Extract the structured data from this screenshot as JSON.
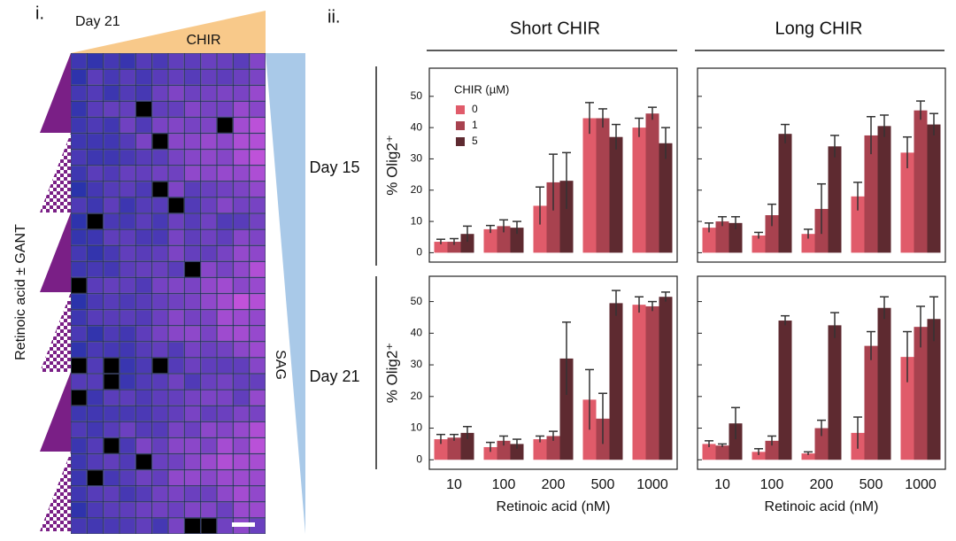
{
  "panel_i": {
    "label": "i.",
    "day": "Day 21",
    "top_gradient": "CHIR",
    "right_gradient": "SAG",
    "left_gradient": "Retinoic acid ± GANT"
  },
  "panel_ii": {
    "label": "ii.",
    "columns": [
      "Short CHIR",
      "Long CHIR"
    ],
    "rows": [
      "Day 15",
      "Day 21"
    ]
  },
  "chart_data": [
    {
      "type": "bar",
      "ylabel": "% Olig2⁺",
      "legend_title": "CHIR (µM)",
      "legend": "upper left",
      "ylim": [
        -3,
        59
      ],
      "yticks": [
        0,
        10,
        20,
        30,
        40,
        50
      ],
      "tick_labels": true,
      "series": [
        {
          "name": "0",
          "color": "#e05b6a",
          "values": [
            3.5,
            7.5,
            15,
            43,
            40
          ],
          "errors": [
            0.8,
            1.2,
            6,
            5,
            3
          ]
        },
        {
          "name": "1",
          "color": "#a8424f",
          "values": [
            3.5,
            8.5,
            22.5,
            43,
            44.5
          ],
          "errors": [
            1,
            2,
            9,
            3,
            2
          ]
        },
        {
          "name": "5",
          "color": "#5e2a30",
          "values": [
            6,
            8,
            23,
            37,
            35
          ],
          "errors": [
            2.5,
            2,
            9,
            4,
            5
          ]
        }
      ]
    },
    {
      "type": "bar",
      "ylim": [
        -3,
        59
      ],
      "yticks": [
        0,
        10,
        20,
        30,
        40,
        50
      ],
      "tick_labels": false,
      "series": [
        {
          "color": "#e05b6a",
          "values": [
            8,
            5.5,
            6,
            18,
            32
          ],
          "errors": [
            1.5,
            1,
            1.5,
            4.5,
            5
          ]
        },
        {
          "color": "#a8424f",
          "values": [
            10,
            12,
            14,
            37.5,
            45.5
          ],
          "errors": [
            1.5,
            3.5,
            8,
            6,
            3
          ]
        },
        {
          "color": "#5e2a30",
          "values": [
            9.5,
            38,
            34,
            40.5,
            41
          ],
          "errors": [
            2,
            3,
            3.5,
            3.5,
            3.5
          ]
        }
      ]
    },
    {
      "type": "bar",
      "ylabel": "% Olig2⁺",
      "xlabel": "Retinoic acid (nM)",
      "categories": [
        "10",
        "100",
        "200",
        "500",
        "1000"
      ],
      "ylim": [
        -3,
        58
      ],
      "yticks": [
        0,
        10,
        20,
        30,
        40,
        50
      ],
      "tick_labels": true,
      "series": [
        {
          "color": "#e05b6a",
          "values": [
            6.5,
            4,
            6.5,
            19,
            49
          ],
          "errors": [
            1.5,
            1.5,
            1,
            9.5,
            2.5
          ]
        },
        {
          "color": "#a8424f",
          "values": [
            7,
            6,
            7.5,
            13,
            48.5
          ],
          "errors": [
            1,
            1.5,
            1.5,
            8,
            1.5
          ]
        },
        {
          "color": "#5e2a30",
          "values": [
            8.5,
            5,
            32,
            49.5,
            51.5
          ],
          "errors": [
            2,
            1.5,
            11.5,
            4,
            1.5
          ]
        }
      ]
    },
    {
      "type": "bar",
      "xlabel": "Retinoic acid (nM)",
      "categories": [
        "10",
        "100",
        "200",
        "500",
        "1000"
      ],
      "ylim": [
        -3,
        58
      ],
      "yticks": [
        0,
        10,
        20,
        30,
        40,
        50
      ],
      "tick_labels": false,
      "series": [
        {
          "color": "#e05b6a",
          "values": [
            5,
            2.5,
            2,
            8.5,
            32.5
          ],
          "errors": [
            1,
            1,
            0.5,
            5,
            8
          ]
        },
        {
          "color": "#a8424f",
          "values": [
            4.5,
            6,
            10,
            36,
            42
          ],
          "errors": [
            0.5,
            1.5,
            2.5,
            4.5,
            6.5
          ]
        },
        {
          "color": "#5e2a30",
          "values": [
            11.5,
            44,
            42.5,
            48,
            44.5
          ],
          "errors": [
            5,
            1.5,
            4,
            3.5,
            7
          ]
        }
      ]
    }
  ]
}
